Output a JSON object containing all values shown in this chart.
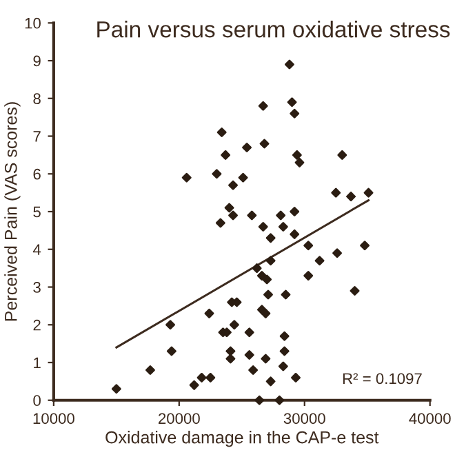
{
  "chart_data": {
    "type": "scatter",
    "title": "Pain versus serum oxidative stress",
    "xlabel": "Oxidative damage in the CAP-e test",
    "ylabel": "Perceived Pain (VAS scores)",
    "annotations": [
      "R² = 0.1097"
    ],
    "xlim": [
      10000,
      40000
    ],
    "xticks": [
      10000,
      20000,
      30000,
      40000
    ],
    "ylim": [
      0,
      10
    ],
    "yticks": [
      0,
      1,
      2,
      3,
      4,
      5,
      6,
      7,
      8,
      9,
      10
    ],
    "grid": false,
    "legend": false,
    "series": [
      {
        "color": "#2b1d12",
        "marker": "diamond",
        "x": [
          28800,
          26700,
          29000,
          29200,
          23400,
          23700,
          25400,
          26800,
          29400,
          29600,
          33000,
          20600,
          23000,
          24300,
          25100,
          32500,
          33700,
          35100,
          24000,
          23300,
          24300,
          25800,
          26700,
          28100,
          28300,
          29200,
          27300,
          29200,
          30300,
          34800,
          32600,
          31200,
          26200,
          27300,
          26600,
          27000,
          30300,
          34000,
          27100,
          28500,
          24200,
          24600,
          22400,
          26600,
          26900,
          19300,
          24400,
          23500,
          23800,
          25600,
          28400,
          19400,
          24100,
          24100,
          25600,
          26900,
          28400,
          17700,
          25900,
          28300,
          27300,
          29300,
          21200,
          21800,
          22500,
          15000,
          26400,
          28000
        ],
        "values": [
          8.9,
          7.8,
          7.9,
          7.6,
          7.1,
          6.5,
          6.7,
          6.8,
          6.5,
          6.3,
          6.5,
          5.9,
          6.0,
          5.7,
          5.9,
          5.5,
          5.4,
          5.5,
          5.1,
          4.7,
          4.9,
          4.9,
          4.6,
          4.9,
          4.6,
          5.0,
          4.3,
          4.4,
          4.1,
          4.1,
          3.9,
          3.7,
          3.5,
          3.7,
          3.3,
          3.2,
          3.3,
          2.9,
          2.8,
          2.8,
          2.6,
          2.6,
          2.3,
          2.4,
          2.3,
          2.0,
          2.0,
          1.8,
          1.8,
          1.8,
          1.7,
          1.3,
          1.3,
          1.1,
          1.2,
          1.1,
          1.3,
          0.8,
          0.8,
          0.9,
          0.5,
          0.6,
          0.4,
          0.6,
          0.6,
          0.3,
          0,
          0
        ]
      },
      {
        "type": "line",
        "color": "#3d2b1f",
        "marker": "none",
        "line_style": "solid",
        "x": [
          15000,
          35100
        ],
        "values": [
          1.4,
          5.3
        ]
      }
    ]
  }
}
